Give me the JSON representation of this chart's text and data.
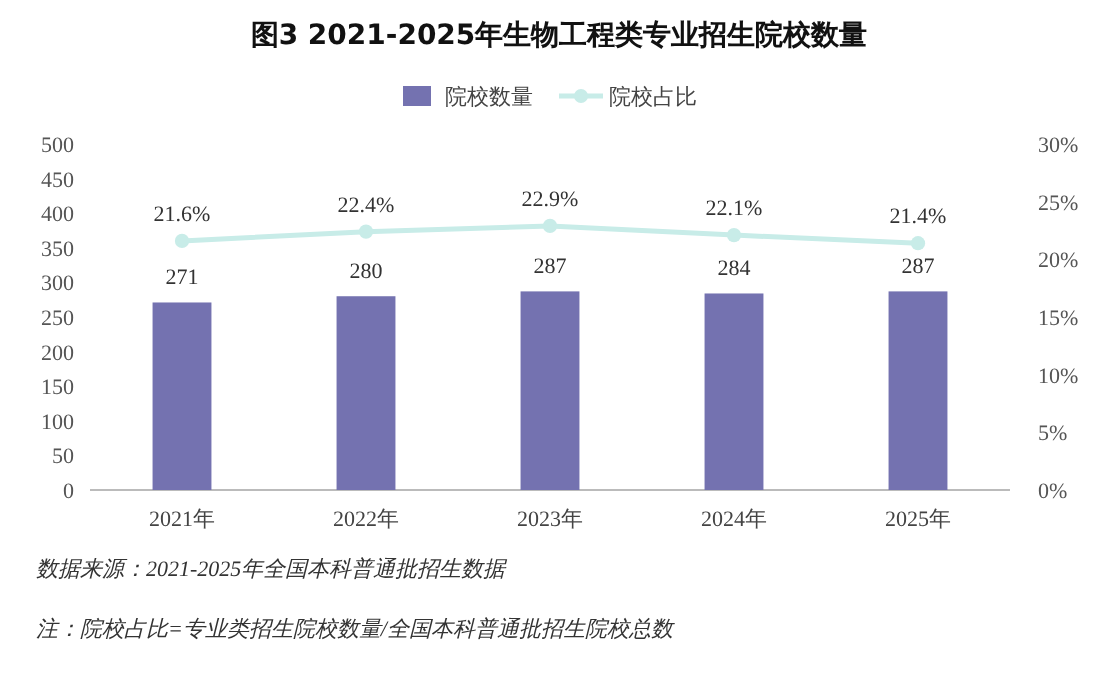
{
  "chart_data": {
    "type": "bar",
    "title": "图3  2021-2025年生物工程类专业招生院校数量",
    "categories": [
      "2021年",
      "2022年",
      "2023年",
      "2024年",
      "2025年"
    ],
    "series": [
      {
        "name": "院校数量",
        "color": "#7472b0",
        "values": [
          271,
          280,
          287,
          284,
          287
        ],
        "value_labels": [
          "271",
          "280",
          "287",
          "284",
          "287"
        ]
      },
      {
        "name": "院校占比",
        "type": "line",
        "axis": "y2",
        "color": "#c8ece8",
        "values": [
          21.6,
          22.4,
          22.9,
          22.1,
          21.4
        ],
        "value_labels": [
          "21.6%",
          "22.4%",
          "22.9%",
          "22.1%",
          "21.4%"
        ]
      }
    ],
    "ylim": [
      0,
      500
    ],
    "yticks": [
      0,
      50,
      100,
      150,
      200,
      250,
      300,
      350,
      400,
      450,
      500
    ],
    "y2lim": [
      0,
      30
    ],
    "y2ticks": [
      {
        "value": 0,
        "label": "0%"
      },
      {
        "value": 5,
        "label": "5%"
      },
      {
        "value": 10,
        "label": "10%"
      },
      {
        "value": 15,
        "label": "15%"
      },
      {
        "value": 20,
        "label": "20%"
      },
      {
        "value": 25,
        "label": "25%"
      },
      {
        "value": 30,
        "label": "30%"
      }
    ],
    "legend": "top",
    "marker": "circle",
    "line_style": "solid",
    "annotations": [
      "数据来源：2021-2025年全国本科普通批招生数据",
      "注：院校占比=专业类招生院校数量/全国本科普通批招生院校总数"
    ]
  }
}
